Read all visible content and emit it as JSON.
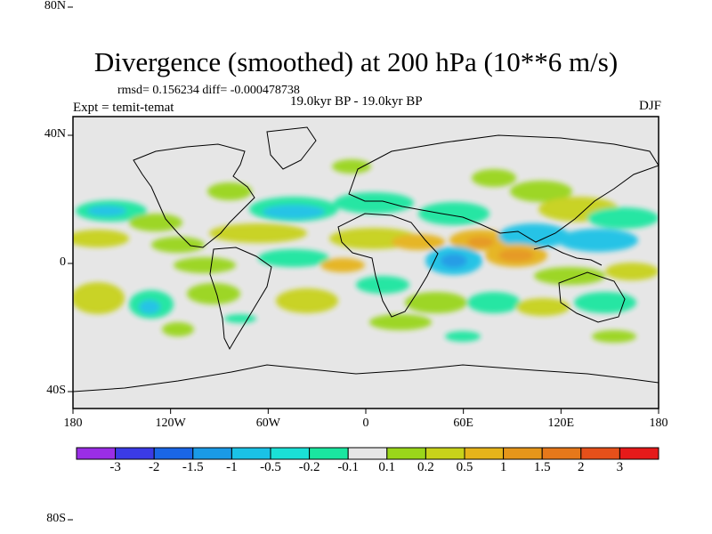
{
  "title": "Divergence (smoothed) at 200 hPa (10**6 m/s)",
  "stats": {
    "rmsd_label": "rmsd=",
    "rmsd": "0.156234",
    "diff_label": "diff=",
    "diff": "-0.000478738"
  },
  "subtitle": {
    "expt": "Expt = temit-temat",
    "period": "19.0kyr BP - 19.0kyr BP",
    "season": "DJF"
  },
  "axes": {
    "lat_ticks": [
      {
        "label": "80N",
        "value": 80
      },
      {
        "label": "40N",
        "value": 40
      },
      {
        "label": "0",
        "value": 0
      },
      {
        "label": "40S",
        "value": -40
      },
      {
        "label": "80S",
        "value": -80
      }
    ],
    "lon_ticks": [
      {
        "label": "180",
        "value": -180
      },
      {
        "label": "120W",
        "value": -120
      },
      {
        "label": "60W",
        "value": -60
      },
      {
        "label": "0",
        "value": 0
      },
      {
        "label": "60E",
        "value": 60
      },
      {
        "label": "120E",
        "value": 120
      },
      {
        "label": "180",
        "value": 180
      }
    ]
  },
  "colorbar": {
    "colors": [
      "#9a2ee6",
      "#3b3be6",
      "#1a66e6",
      "#1a9ae6",
      "#1ac2e6",
      "#1ae0d6",
      "#1ae6a0",
      "#e6e6e6",
      "#9ad61a",
      "#c8d21a",
      "#e6b41a",
      "#e6961a",
      "#e6781a",
      "#e6501a",
      "#e61a1a"
    ],
    "labels": [
      "-3",
      "-2",
      "-1.5",
      "-1",
      "-0.5",
      "-0.2",
      "-0.1",
      "0.1",
      "0.2",
      "0.5",
      "1",
      "1.5",
      "2",
      "3"
    ]
  },
  "field_colors": {
    "ocean_bg": "#e6e6e6",
    "weak_pos": "#9ad61a",
    "mod_pos": "#c8d21a",
    "strong_pos": "#e6961a",
    "weak_neg": "#1ae6a0",
    "mod_neg": "#1ac2e6",
    "strong_neg": "#1a9ae6"
  }
}
